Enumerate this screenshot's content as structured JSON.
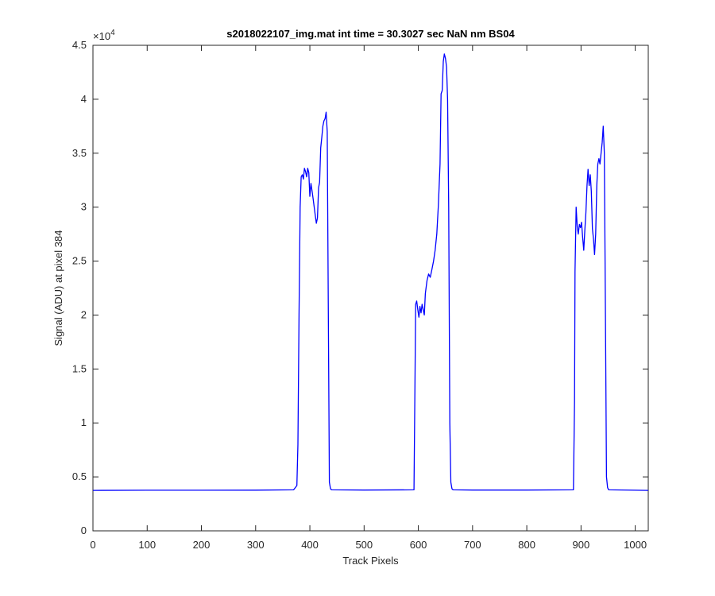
{
  "chart_data": {
    "type": "line",
    "title": "s2018022107_img.mat int time = 30.3027 sec  NaN nm BS04",
    "xlabel": "Track Pixels",
    "ylabel": "Signal (ADU) at pixel 384",
    "xlim": [
      0,
      1024
    ],
    "ylim": [
      0,
      45000
    ],
    "y_exponent_label": "×10",
    "y_exponent_power": "4",
    "xticks": [
      0,
      100,
      200,
      300,
      400,
      500,
      600,
      700,
      800,
      900,
      1000
    ],
    "yticks": [
      0,
      5000,
      10000,
      15000,
      20000,
      25000,
      30000,
      35000,
      40000,
      45000
    ],
    "xtick_labels": [
      "0",
      "100",
      "200",
      "300",
      "400",
      "500",
      "600",
      "700",
      "800",
      "900",
      "1000"
    ],
    "ytick_labels": [
      "0",
      "0.5",
      "1",
      "1.5",
      "2",
      "2.5",
      "3",
      "3.5",
      "4",
      "4.5"
    ],
    "grid": false,
    "line_color": "#0000ff",
    "series": [
      {
        "points": [
          [
            0,
            3750
          ],
          [
            100,
            3760
          ],
          [
            200,
            3760
          ],
          [
            300,
            3770
          ],
          [
            370,
            3800
          ],
          [
            376,
            4200
          ],
          [
            378,
            8000
          ],
          [
            380,
            20000
          ],
          [
            382,
            30000
          ],
          [
            384,
            32800
          ],
          [
            386,
            33000
          ],
          [
            388,
            32600
          ],
          [
            390,
            33600
          ],
          [
            392,
            33300
          ],
          [
            394,
            32800
          ],
          [
            396,
            33600
          ],
          [
            398,
            33200
          ],
          [
            400,
            31000
          ],
          [
            402,
            32200
          ],
          [
            404,
            31500
          ],
          [
            406,
            30800
          ],
          [
            408,
            30000
          ],
          [
            410,
            29200
          ],
          [
            412,
            28500
          ],
          [
            414,
            29000
          ],
          [
            416,
            31800
          ],
          [
            418,
            32300
          ],
          [
            420,
            35500
          ],
          [
            422,
            36500
          ],
          [
            424,
            37500
          ],
          [
            426,
            38000
          ],
          [
            428,
            38200
          ],
          [
            430,
            38800
          ],
          [
            432,
            37000
          ],
          [
            434,
            20000
          ],
          [
            436,
            4500
          ],
          [
            438,
            3900
          ],
          [
            440,
            3800
          ],
          [
            500,
            3780
          ],
          [
            592,
            3800
          ],
          [
            594,
            15000
          ],
          [
            595,
            21000
          ],
          [
            597,
            21300
          ],
          [
            599,
            20500
          ],
          [
            601,
            19800
          ],
          [
            603,
            20800
          ],
          [
            605,
            20200
          ],
          [
            607,
            21000
          ],
          [
            609,
            20500
          ],
          [
            611,
            20000
          ],
          [
            613,
            22000
          ],
          [
            616,
            23200
          ],
          [
            619,
            23800
          ],
          [
            622,
            23500
          ],
          [
            625,
            24200
          ],
          [
            628,
            25000
          ],
          [
            631,
            26000
          ],
          [
            634,
            27500
          ],
          [
            637,
            30200
          ],
          [
            640,
            34000
          ],
          [
            642,
            40500
          ],
          [
            644,
            40800
          ],
          [
            646,
            43500
          ],
          [
            648,
            44200
          ],
          [
            650,
            43800
          ],
          [
            652,
            43000
          ],
          [
            654,
            40000
          ],
          [
            656,
            30000
          ],
          [
            658,
            10000
          ],
          [
            660,
            4500
          ],
          [
            662,
            3900
          ],
          [
            664,
            3800
          ],
          [
            700,
            3780
          ],
          [
            800,
            3780
          ],
          [
            886,
            3800
          ],
          [
            888,
            12000
          ],
          [
            889,
            24000
          ],
          [
            891,
            30000
          ],
          [
            893,
            28200
          ],
          [
            895,
            27500
          ],
          [
            897,
            28400
          ],
          [
            899,
            28100
          ],
          [
            901,
            28600
          ],
          [
            903,
            27200
          ],
          [
            905,
            26000
          ],
          [
            907,
            27800
          ],
          [
            909,
            29500
          ],
          [
            911,
            32000
          ],
          [
            913,
            33500
          ],
          [
            915,
            32000
          ],
          [
            917,
            33000
          ],
          [
            919,
            31500
          ],
          [
            921,
            28000
          ],
          [
            923,
            27000
          ],
          [
            925,
            25600
          ],
          [
            927,
            27500
          ],
          [
            929,
            32000
          ],
          [
            931,
            34000
          ],
          [
            933,
            34500
          ],
          [
            935,
            34000
          ],
          [
            937,
            35000
          ],
          [
            939,
            36000
          ],
          [
            941,
            37500
          ],
          [
            943,
            35000
          ],
          [
            945,
            20000
          ],
          [
            947,
            5000
          ],
          [
            949,
            4000
          ],
          [
            951,
            3800
          ],
          [
            1000,
            3760
          ],
          [
            1024,
            3750
          ]
        ]
      }
    ]
  }
}
